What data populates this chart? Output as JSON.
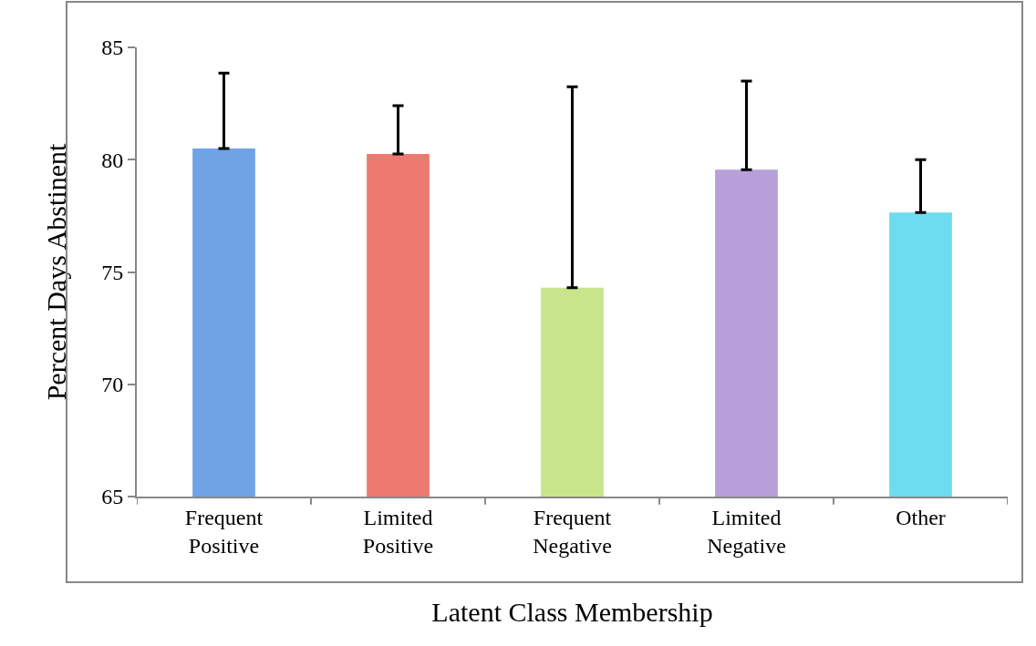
{
  "chart_data": {
    "type": "bar",
    "xlabel": "Latent Class Membership",
    "ylabel": "Percent Days Abstinent",
    "categories": [
      "Frequent\nPositive",
      "Limited\nPositive",
      "Frequent\nNegative",
      "Limited\nNegative",
      "Other"
    ],
    "values": [
      80.5,
      80.25,
      74.3,
      79.55,
      77.65
    ],
    "colors": [
      "#6fa3e6",
      "#ec7a70",
      "#c8e58a",
      "#b79fd9",
      "#6ddcee"
    ],
    "errors": [
      [
        80.5,
        83.85
      ],
      [
        80.25,
        82.4
      ],
      [
        74.3,
        83.25
      ],
      [
        79.55,
        83.5
      ],
      [
        77.65,
        80.0
      ]
    ],
    "ylim": [
      65,
      85
    ],
    "yticks": [
      65,
      70,
      75,
      80,
      85
    ],
    "grid": false,
    "legend": false
  }
}
